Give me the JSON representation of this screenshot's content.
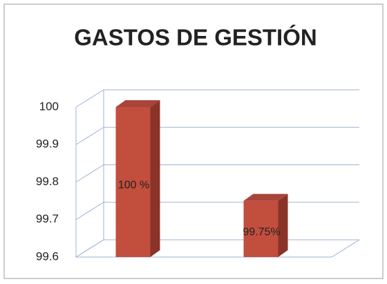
{
  "chart_data": {
    "type": "bar3d",
    "title": "GASTOS DE GESTIÓN",
    "categories": [
      null,
      null
    ],
    "values": [
      100,
      99.75
    ],
    "value_labels": [
      "100 %",
      "99.75%"
    ],
    "color": "#c24e3e",
    "ylim": [
      99.6,
      100
    ],
    "yticks": [
      99.6,
      99.7,
      99.8,
      99.9,
      100
    ],
    "grid": true
  }
}
